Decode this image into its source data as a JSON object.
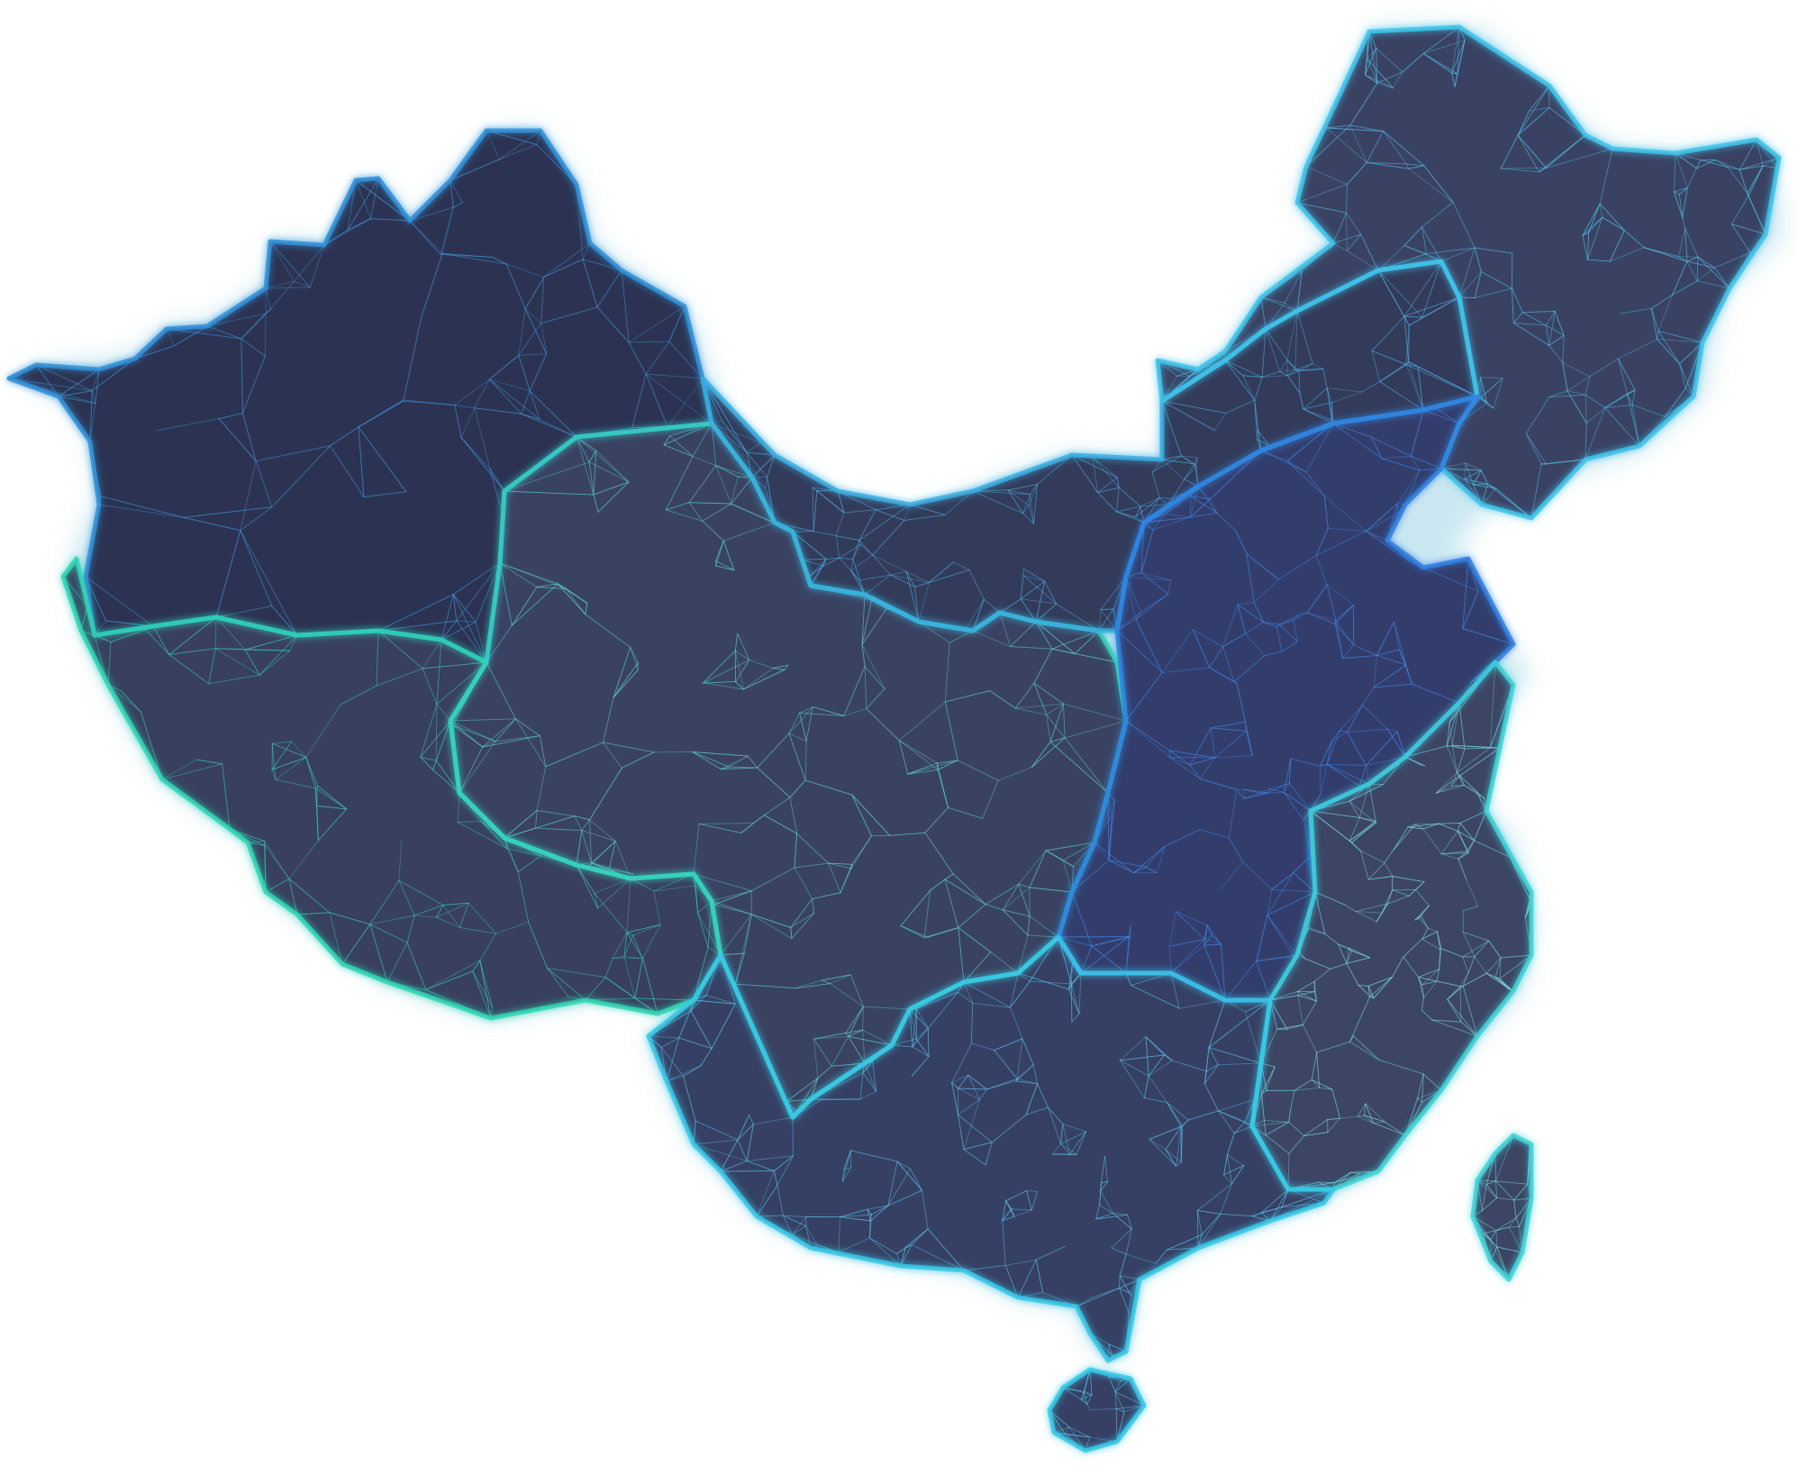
{
  "map": {
    "style": "low-poly triangulated mesh map with glowing region borders",
    "background": "#ffffff",
    "land_fill": "#353d5c",
    "shadow_color": "#9fd4e6",
    "regions": [
      {
        "id": "northwest",
        "fill": "#2c3352",
        "edge": "#2f8fd6",
        "mesh": "#3f9be0"
      },
      {
        "id": "southwest-plateau",
        "fill": "#38405e",
        "edge": "#2fd6b4",
        "mesh": "#3ed2b8"
      },
      {
        "id": "central-west",
        "fill": "#3a4262",
        "edge": "#35d1c0",
        "mesh": "#5fd8d0"
      },
      {
        "id": "north",
        "fill": "#333b5a",
        "edge": "#3aaee0",
        "mesh": "#4fb2e6"
      },
      {
        "id": "northeast",
        "fill": "#3a4263",
        "edge": "#3fc3ea",
        "mesh": "#52c6ee"
      },
      {
        "id": "north-china-plain",
        "fill": "#333d6c",
        "edge": "#2f7fe0",
        "mesh": "#3f8ef0"
      },
      {
        "id": "east",
        "fill": "#3c4564",
        "edge": "#3fd2d6",
        "mesh": "#7fe2e6"
      },
      {
        "id": "south",
        "fill": "#364064",
        "edge": "#38c8e8",
        "mesh": "#5ccaf0"
      }
    ]
  }
}
